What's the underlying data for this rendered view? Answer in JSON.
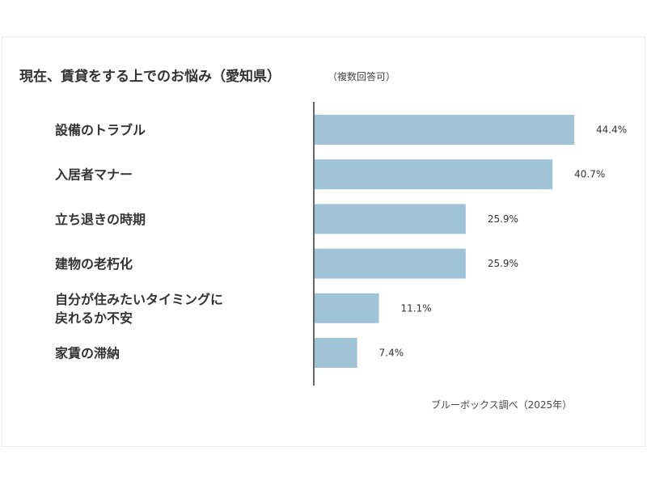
{
  "chart_data": {
    "type": "bar",
    "orientation": "horizontal",
    "title": "現在、賃貸をする上でのお悩み（愛知県）",
    "subtitle": "（複数回答可）",
    "source": "ブルーボックス調べ（2025年）",
    "categories": [
      [
        "設備のトラブル"
      ],
      [
        "入居者マナー"
      ],
      [
        "立ち退きの時期"
      ],
      [
        "建物の老朽化"
      ],
      [
        "自分が住みたいタイミングに",
        "戻れるか不安"
      ],
      [
        "家賃の滞納"
      ]
    ],
    "values": [
      44.4,
      40.7,
      25.9,
      25.9,
      11.1,
      7.4
    ],
    "value_labels": [
      "44.4%",
      "40.7%",
      "25.9%",
      "25.9%",
      "11.1%",
      "7.4%"
    ],
    "xlim": [
      0,
      44.4
    ],
    "bar_color": "#9fc4d6",
    "axis_color": "#666666"
  }
}
